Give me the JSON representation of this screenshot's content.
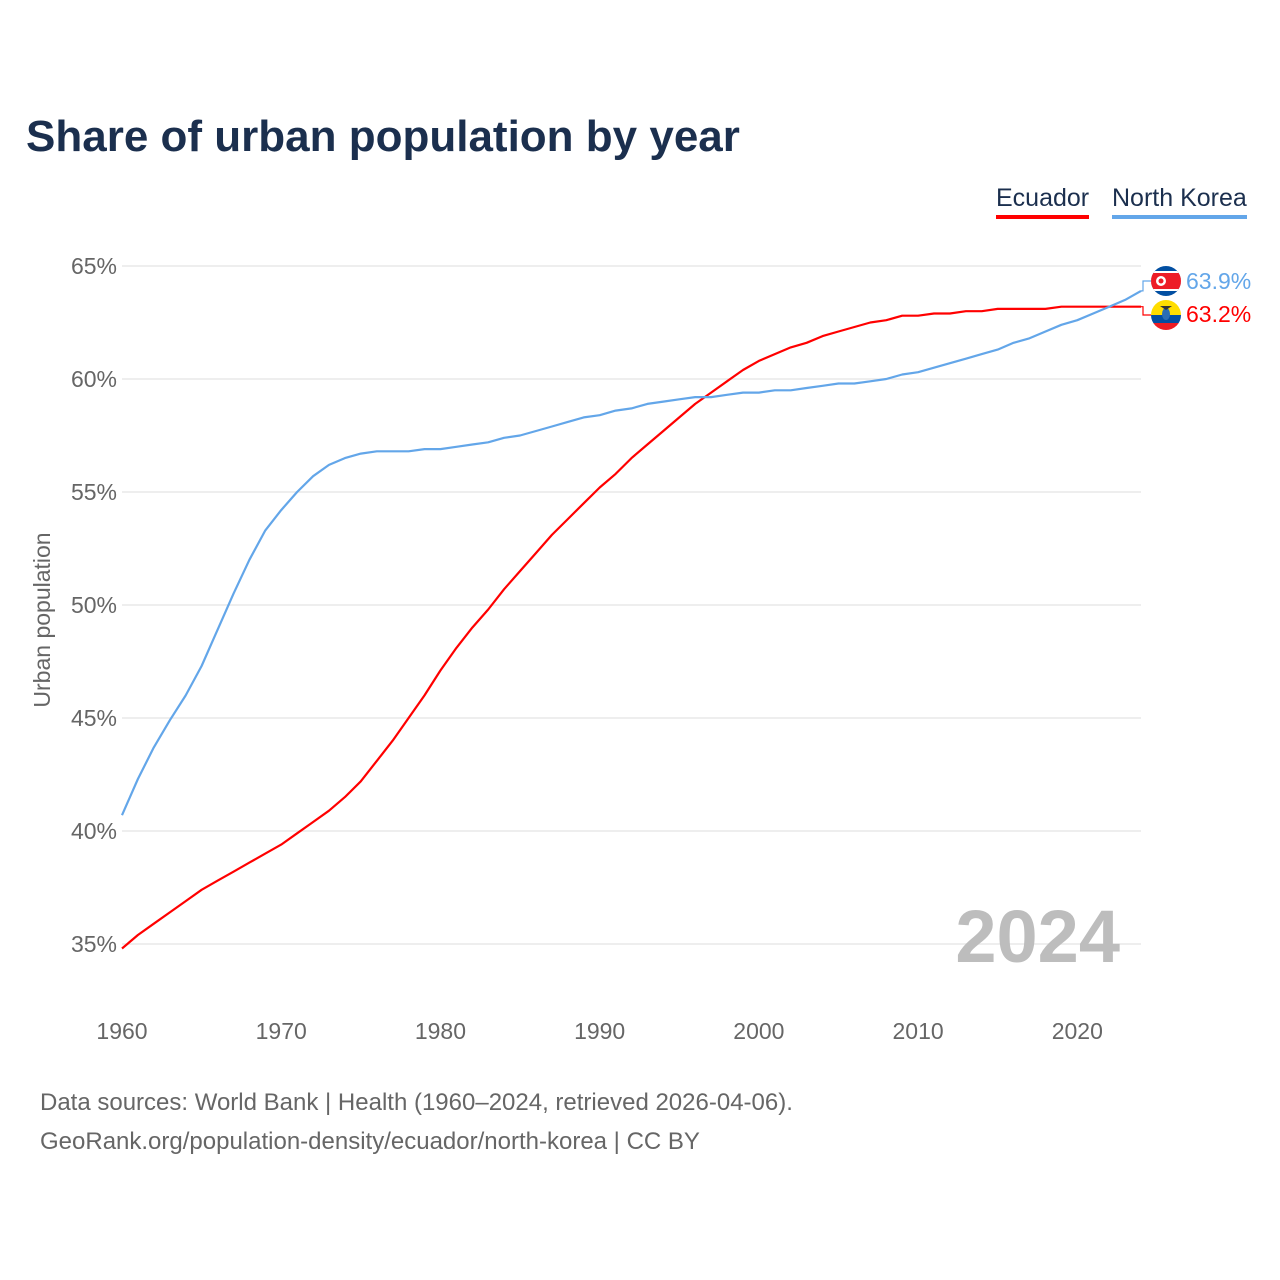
{
  "title": "Share of urban population by year",
  "legend": [
    {
      "label": "Ecuador",
      "color": "#ff0000"
    },
    {
      "label": "North Korea",
      "color": "#63a6e9"
    }
  ],
  "year_watermark": "2024",
  "footer": {
    "line1": "Data sources: World Bank | Health (1960–2024, retrieved 2026-04-06).",
    "line2": "GeoRank.org/population-density/ecuador/north-korea | CC BY"
  },
  "end_labels": {
    "north_korea": "63.9%",
    "ecuador": "63.2%"
  },
  "chart_data": {
    "type": "line",
    "title": "Share of urban population by year",
    "xlabel": "",
    "ylabel": "Urban population",
    "xlim": [
      1960,
      2024
    ],
    "ylim": [
      33,
      66
    ],
    "x_ticks": [
      1960,
      1970,
      1980,
      1990,
      2000,
      2010,
      2020
    ],
    "x_tick_labels": [
      "1960",
      "1970",
      "1980",
      "1990",
      "2000",
      "2010",
      "2020"
    ],
    "y_ticks": [
      35,
      40,
      45,
      50,
      55,
      60,
      65
    ],
    "y_tick_labels": [
      "35%",
      "40%",
      "45%",
      "50%",
      "55%",
      "60%",
      "65%"
    ],
    "grid": true,
    "legend_position": "top-right",
    "x_start": 1960,
    "series": [
      {
        "name": "Ecuador",
        "color": "#ff0000",
        "values": [
          34.8,
          35.4,
          35.9,
          36.4,
          36.9,
          37.4,
          37.8,
          38.2,
          38.6,
          39.0,
          39.4,
          39.9,
          40.4,
          40.9,
          41.5,
          42.2,
          43.1,
          44.0,
          45.0,
          46.0,
          47.1,
          48.1,
          49.0,
          49.8,
          50.7,
          51.5,
          52.3,
          53.1,
          53.8,
          54.5,
          55.2,
          55.8,
          56.5,
          57.1,
          57.7,
          58.3,
          58.9,
          59.4,
          59.9,
          60.4,
          60.8,
          61.1,
          61.4,
          61.6,
          61.9,
          62.1,
          62.3,
          62.5,
          62.6,
          62.8,
          62.8,
          62.9,
          62.9,
          63.0,
          63.0,
          63.1,
          63.1,
          63.1,
          63.1,
          63.2,
          63.2,
          63.2,
          63.2,
          63.2,
          63.2
        ]
      },
      {
        "name": "North Korea",
        "color": "#63a6e9",
        "values": [
          40.7,
          42.3,
          43.7,
          44.9,
          46.0,
          47.3,
          48.9,
          50.5,
          52.0,
          53.3,
          54.2,
          55.0,
          55.7,
          56.2,
          56.5,
          56.7,
          56.8,
          56.8,
          56.8,
          56.9,
          56.9,
          57.0,
          57.1,
          57.2,
          57.4,
          57.5,
          57.7,
          57.9,
          58.1,
          58.3,
          58.4,
          58.6,
          58.7,
          58.9,
          59.0,
          59.1,
          59.2,
          59.2,
          59.3,
          59.4,
          59.4,
          59.5,
          59.5,
          59.6,
          59.7,
          59.8,
          59.8,
          59.9,
          60.0,
          60.2,
          60.3,
          60.5,
          60.7,
          60.9,
          61.1,
          61.3,
          61.6,
          61.8,
          62.1,
          62.4,
          62.6,
          62.9,
          63.2,
          63.5,
          63.9
        ]
      }
    ]
  }
}
